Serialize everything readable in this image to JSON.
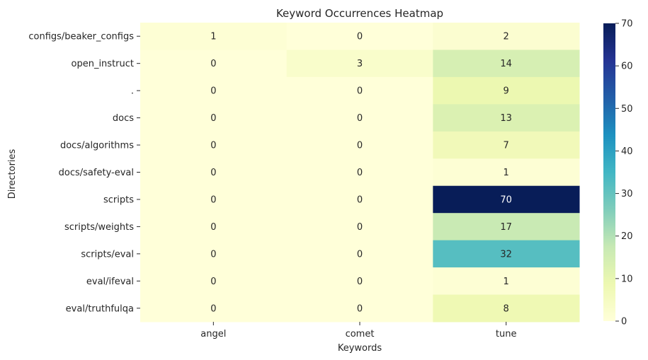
{
  "chart_data": {
    "type": "heatmap",
    "title": "Keyword Occurrences Heatmap",
    "xlabel": "Keywords",
    "ylabel": "Directories",
    "columns": [
      "angel",
      "comet",
      "tune"
    ],
    "rows": [
      "configs/beaker_configs",
      "open_instruct",
      ".",
      "docs",
      "docs/algorithms",
      "docs/safety-eval",
      "scripts",
      "scripts/weights",
      "scripts/eval",
      "eval/ifeval",
      "eval/truthfulqa"
    ],
    "values": [
      [
        1,
        0,
        2
      ],
      [
        0,
        3,
        14
      ],
      [
        0,
        0,
        9
      ],
      [
        0,
        0,
        13
      ],
      [
        0,
        0,
        7
      ],
      [
        0,
        0,
        1
      ],
      [
        0,
        0,
        70
      ],
      [
        0,
        0,
        17
      ],
      [
        0,
        0,
        32
      ],
      [
        0,
        0,
        1
      ],
      [
        0,
        0,
        8
      ]
    ],
    "colormap": "YlGnBu",
    "vmin": 0,
    "vmax": 70,
    "colorbar_ticks": [
      "0",
      "10",
      "20",
      "30",
      "40",
      "50",
      "60",
      "70"
    ],
    "annotations": true
  }
}
